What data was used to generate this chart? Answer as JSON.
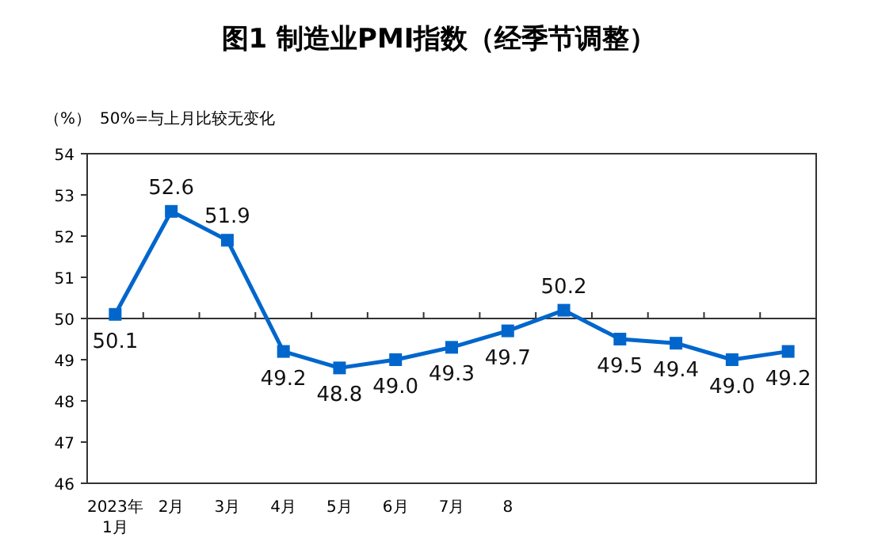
{
  "chart_data": {
    "type": "line",
    "title": "图1 制造业PMI指数（经季节调整）",
    "annotations": [
      "（%）",
      "50%=与上月比较无变化"
    ],
    "categories": [
      "2023年\n1月",
      "2月",
      "3月",
      "4月",
      "5月",
      "6月",
      "7月",
      "8",
      null,
      null,
      null,
      null,
      null
    ],
    "series": [
      {
        "color": "#0066cc",
        "values": [
          50.1,
          52.6,
          51.9,
          49.2,
          48.8,
          49.0,
          49.3,
          49.7,
          50.2,
          49.5,
          49.4,
          49.0,
          49.2
        ],
        "value_labels": [
          "50.1",
          "52.6",
          "51.9",
          "49.2",
          "48.8",
          "49.0",
          "49.3",
          "49.7",
          "50.2",
          "49.5",
          "49.4",
          "49.0",
          "49.2"
        ]
      }
    ],
    "ylim": [
      46,
      54
    ],
    "yticks": [
      46,
      47,
      48,
      49,
      50,
      51,
      52,
      53,
      54
    ],
    "ref_lines": [
      {
        "axis": "y",
        "value": 50
      }
    ],
    "marker": "square",
    "line_style": "solid",
    "grid": false
  }
}
